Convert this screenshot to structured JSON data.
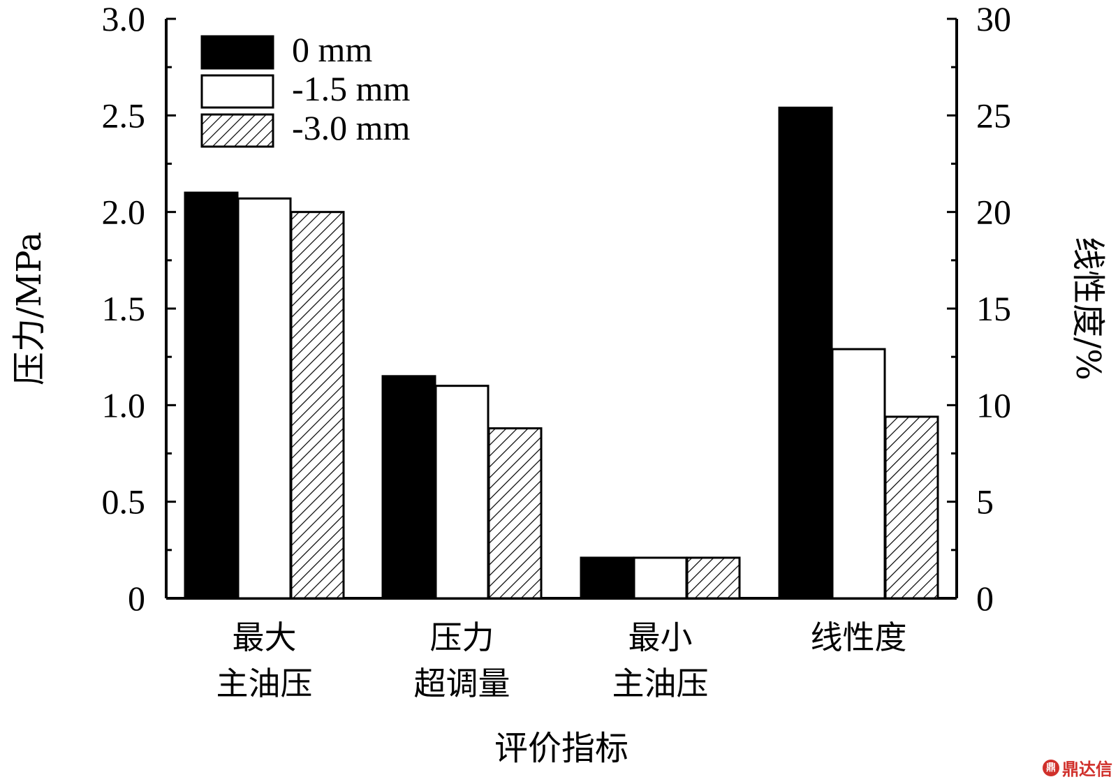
{
  "chart_data": {
    "type": "bar",
    "categories": [
      [
        "最大",
        "主油压"
      ],
      [
        "压力",
        "超调量"
      ],
      [
        "最小",
        "主油压"
      ],
      [
        "线性度"
      ]
    ],
    "series": [
      {
        "name": "0 mm",
        "fill": "solid",
        "values": [
          2.1,
          1.15,
          0.21,
          25.4
        ]
      },
      {
        "name": "-1.5 mm",
        "fill": "open",
        "values": [
          2.07,
          1.1,
          0.21,
          12.9
        ]
      },
      {
        "name": "-3.0 mm",
        "fill": "hatched",
        "values": [
          2.0,
          0.88,
          0.21,
          9.4
        ]
      }
    ],
    "value_axis_by_category": [
      "left",
      "left",
      "left",
      "right"
    ],
    "xlabel": "评价指标",
    "ylabel_left": "压力/MPa",
    "ylabel_right": "线性度/%",
    "ylim_left": [
      0,
      3.0
    ],
    "ylim_right": [
      0,
      30
    ],
    "yticks_left": [
      "0",
      "0.5",
      "1.0",
      "1.5",
      "2.0",
      "2.5",
      "3.0"
    ],
    "yticks_right": [
      "0",
      "5",
      "10",
      "15",
      "20",
      "25",
      "30"
    ],
    "legend_position": "top-left",
    "grid": false
  },
  "watermark": {
    "logo_glyph": "鼎",
    "text": "鼎达信"
  }
}
